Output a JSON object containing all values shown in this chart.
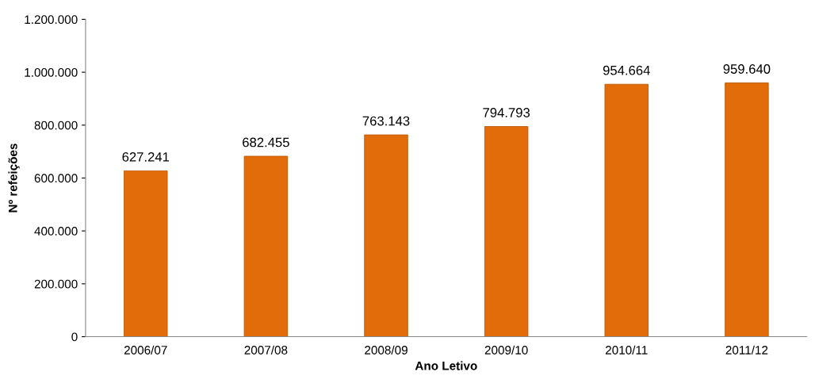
{
  "chart_data": {
    "type": "bar",
    "xlabel": "Ano Letivo",
    "ylabel": "Nº refeições",
    "categories": [
      "2006/07",
      "2007/08",
      "2008/09",
      "2009/10",
      "2010/11",
      "2011/12"
    ],
    "values": [
      627241,
      682455,
      763143,
      794793,
      954664,
      959640
    ],
    "value_labels": [
      "627.241",
      "682.455",
      "763.143",
      "794.793",
      "954.664",
      "959.640"
    ],
    "color": "#e36c0a",
    "ylim": [
      0,
      1200000
    ],
    "yticks": [
      0,
      {
        "value": 200000,
        "label": "200.000"
      },
      {
        "value": 400000,
        "label": "400.000"
      },
      {
        "value": 600000,
        "label": "600.000"
      },
      {
        "value": 800000,
        "label": "800.000"
      },
      {
        "value": 1000000,
        "label": "1.000.000"
      },
      {
        "value": 1200000,
        "label": "1.200.000"
      }
    ],
    "grid": false,
    "legend": false
  }
}
